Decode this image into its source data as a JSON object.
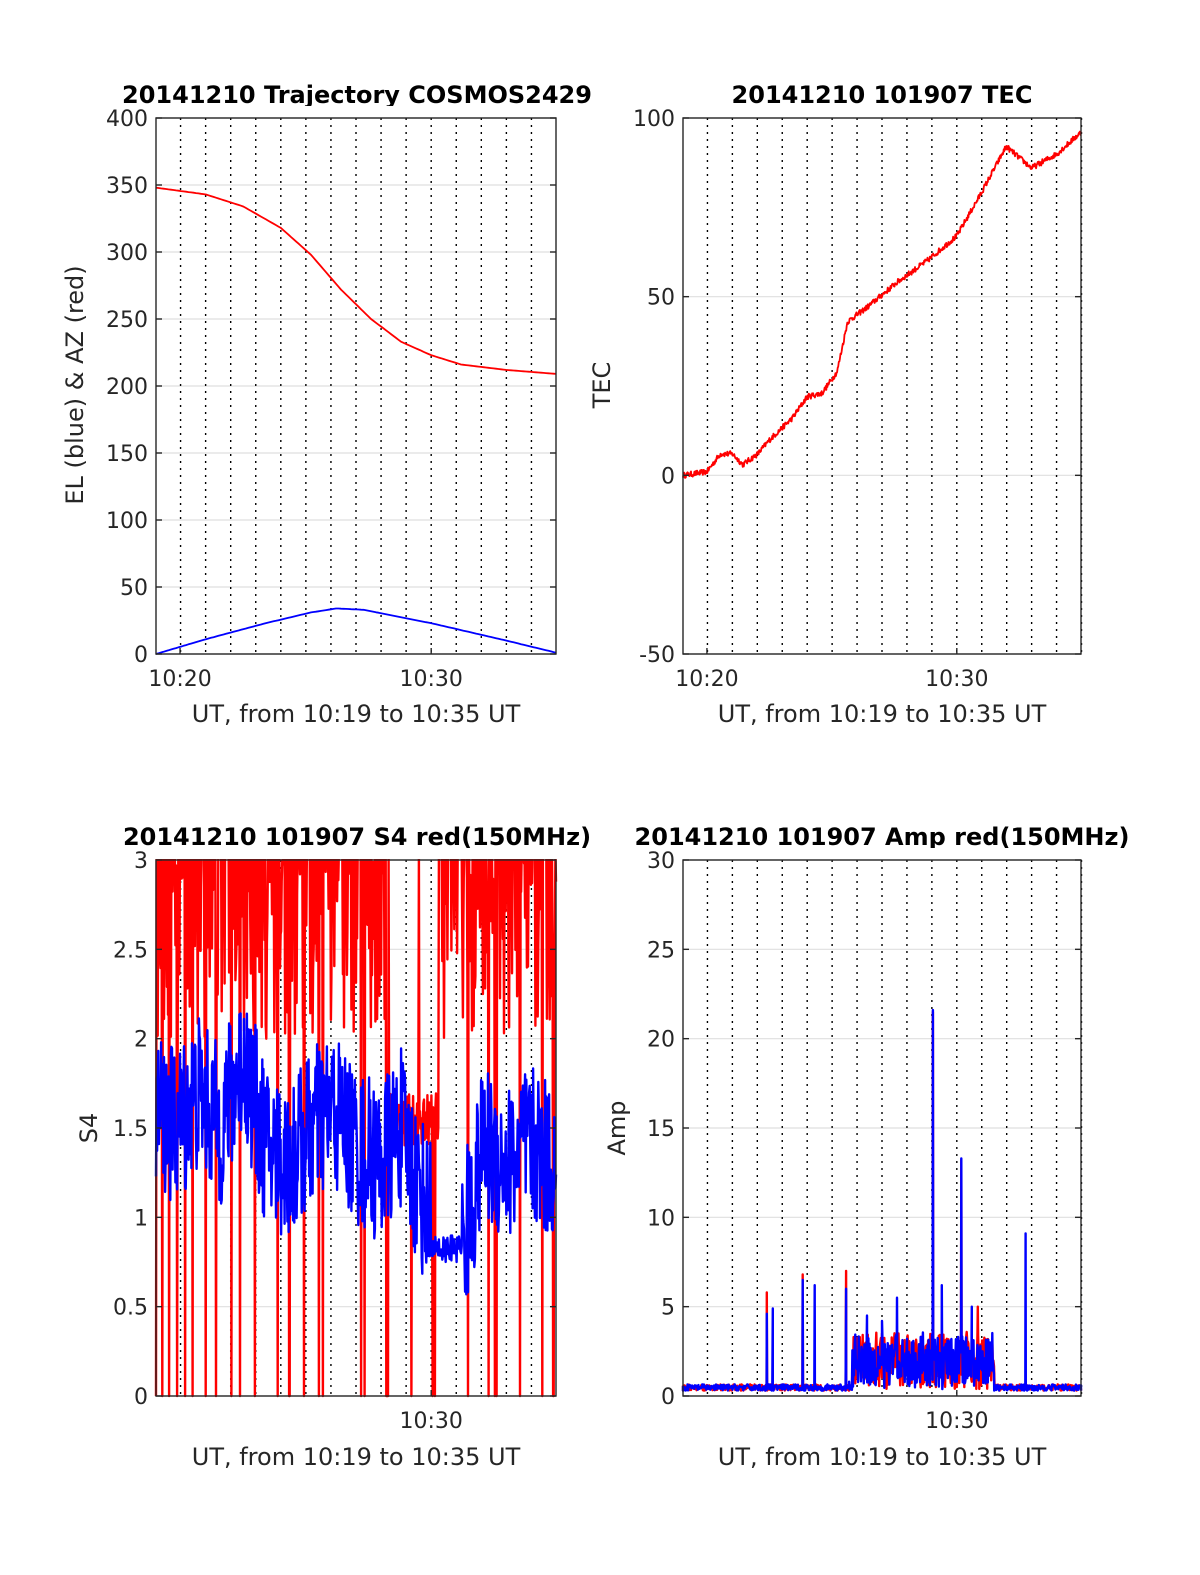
{
  "figure": {
    "panels": [
      {
        "id": "trajectory",
        "title": "20141210 Trajectory COSMOS2429",
        "xlabel": "UT, from 10:19 to 10:35 UT",
        "ylabel": "EL (blue) & AZ (red)"
      },
      {
        "id": "tec",
        "title": "20141210 101907 TEC",
        "xlabel": "UT, from 10:19 to 10:35 UT",
        "ylabel": "TEC"
      },
      {
        "id": "s4",
        "title": "20141210 101907 S4 red(150MHz)",
        "xlabel": "UT, from 10:19 to 10:35 UT",
        "ylabel": "S4"
      },
      {
        "id": "amp",
        "title": "20141210 101907 Amp red(150MHz)",
        "xlabel": "UT, from 10:19 to 10:35 UT",
        "ylabel": "Amp"
      }
    ]
  },
  "chart_data": [
    {
      "type": "line",
      "title": "20141210 Trajectory COSMOS2429",
      "xlabel": "UT, from 10:19 to 10:35 UT",
      "ylabel": "EL (blue) & AZ (red)",
      "xlim": [
        10.317,
        10.583
      ],
      "ylim": [
        0,
        400
      ],
      "x_ticks": [
        {
          "v": 10.333,
          "label": "10:20"
        },
        {
          "v": 10.5,
          "label": "10:30"
        }
      ],
      "y_ticks": [
        0,
        50,
        100,
        150,
        200,
        250,
        300,
        350,
        400
      ],
      "grid": true,
      "series": [
        {
          "color": "#ff0000",
          "x": [
            10.317,
            10.35,
            10.375,
            10.4,
            10.42,
            10.44,
            10.46,
            10.48,
            10.5,
            10.52,
            10.55,
            10.583
          ],
          "values": [
            348,
            343,
            334,
            318,
            298,
            272,
            250,
            233,
            223,
            216,
            212,
            209
          ]
        },
        {
          "color": "#0000ff",
          "x": [
            10.317,
            10.35,
            10.39,
            10.42,
            10.437,
            10.455,
            10.5,
            10.55,
            10.583
          ],
          "values": [
            0,
            11,
            23,
            31,
            34,
            33,
            23,
            10,
            1
          ]
        }
      ]
    },
    {
      "type": "line",
      "title": "20141210 101907 TEC",
      "xlabel": "UT, from 10:19 to 10:35 UT",
      "ylabel": "TEC",
      "xlim": [
        10.317,
        10.583
      ],
      "ylim": [
        -50,
        100
      ],
      "x_ticks": [
        {
          "v": 10.333,
          "label": "10:20"
        },
        {
          "v": 10.5,
          "label": "10:30"
        }
      ],
      "y_ticks": [
        -50,
        0,
        50,
        100
      ],
      "grid": true,
      "series": [
        {
          "color": "#ff0000",
          "x": [
            10.317,
            10.333,
            10.342,
            10.35,
            10.357,
            10.367,
            10.375,
            10.39,
            10.4,
            10.41,
            10.42,
            10.427,
            10.44,
            10.46,
            10.48,
            10.5,
            10.515,
            10.533,
            10.55,
            10.567,
            10.583
          ],
          "values": [
            0,
            1,
            6,
            6,
            3,
            6,
            10,
            16,
            22,
            23,
            29,
            43,
            47,
            54,
            60,
            67,
            78,
            92,
            86,
            90,
            96
          ]
        }
      ]
    },
    {
      "type": "line",
      "title": "20141210 101907 S4 red(150MHz)",
      "xlabel": "UT, from 10:19 to 10:35 UT",
      "ylabel": "S4",
      "xlim": [
        10.317,
        10.583
      ],
      "ylim": [
        0,
        3
      ],
      "x_ticks": [
        {
          "v": 10.5,
          "label": "10:30"
        }
      ],
      "y_ticks": [
        0,
        0.5,
        1,
        1.5,
        2,
        2.5,
        3
      ],
      "grid": true,
      "series": [
        {
          "color": "#ff0000",
          "note_values": "saturated at top with frequent drops to 0",
          "x": [
            10.317,
            10.36,
            10.4,
            10.43,
            10.47,
            10.49,
            10.52,
            10.55,
            10.583
          ],
          "values": [
            3,
            3,
            3,
            3,
            3,
            2.8,
            2.9,
            3,
            3
          ]
        },
        {
          "color": "#0000ff",
          "x": [
            10.317,
            10.33,
            10.345,
            10.36,
            10.375,
            10.39,
            10.405,
            10.42,
            10.435,
            10.45,
            10.465,
            10.48,
            10.49,
            10.5,
            10.51,
            10.52,
            10.535,
            10.55,
            10.565,
            10.583
          ],
          "values": [
            1.6,
            1.5,
            1.7,
            1.5,
            1.9,
            1.4,
            1.3,
            1.5,
            1.6,
            1.4,
            1.3,
            1.5,
            1.2,
            1.0,
            1.3,
            0.8,
            1.4,
            1.3,
            1.4,
            1.3
          ]
        }
      ]
    },
    {
      "type": "line",
      "title": "20141210 101907 Amp red(150MHz)",
      "xlabel": "UT, from 10:19 to 10:35 UT",
      "ylabel": "Amp",
      "xlim": [
        10.317,
        10.583
      ],
      "ylim": [
        0,
        30
      ],
      "x_ticks": [
        {
          "v": 10.5,
          "label": "10:30"
        }
      ],
      "y_ticks": [
        0,
        5,
        10,
        15,
        20,
        25,
        30
      ],
      "grid": true,
      "series": [
        {
          "color": "#ff0000",
          "x": [
            10.317,
            10.372,
            10.373,
            10.374,
            10.395,
            10.397,
            10.399,
            10.42,
            10.426,
            10.428,
            10.45,
            10.482,
            10.484,
            10.486,
            10.5,
            10.503,
            10.505,
            10.513,
            10.514,
            10.515,
            10.583
          ],
          "values": [
            0.3,
            0.3,
            5.8,
            0.4,
            0.3,
            6.8,
            0.4,
            0.3,
            7.0,
            0.5,
            3.5,
            0.5,
            21.5,
            0.5,
            0.5,
            13.2,
            0.5,
            0.4,
            5.0,
            0.4,
            0.3
          ]
        },
        {
          "color": "#0000ff",
          "x": [
            10.317,
            10.372,
            10.373,
            10.374,
            10.376,
            10.377,
            10.378,
            10.395,
            10.397,
            10.399,
            10.404,
            10.405,
            10.406,
            10.42,
            10.426,
            10.428,
            10.44,
            10.45,
            10.46,
            10.47,
            10.48,
            10.482,
            10.484,
            10.486,
            10.49,
            10.494,
            10.5,
            10.503,
            10.505,
            10.51,
            10.515,
            10.52,
            10.524,
            10.525,
            10.545,
            10.546,
            10.547,
            10.583
          ],
          "values": [
            0.3,
            0.3,
            4.6,
            0.5,
            0.5,
            4.9,
            0.4,
            0.4,
            6.5,
            0.5,
            0.5,
            6.2,
            0.4,
            0.3,
            6.0,
            0.8,
            4.5,
            4.2,
            5.5,
            3.0,
            0.6,
            0.6,
            21.6,
            0.6,
            6.2,
            1.0,
            0.8,
            13.3,
            0.7,
            5.0,
            1.5,
            2.5,
            1.8,
            0.3,
            0.3,
            9.1,
            0.3,
            0.3
          ]
        }
      ]
    }
  ]
}
